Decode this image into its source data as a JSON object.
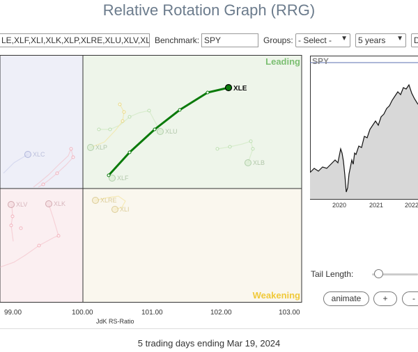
{
  "page": {
    "title": "Relative Rotation Graph (RRG)"
  },
  "toolbar": {
    "symbols_value": "LE,XLF,XLI,XLK,XLP,XLRE,XLU,XLV,XL",
    "benchmark_label": "Benchmark:",
    "benchmark_value": "SPY",
    "groups_label": "Groups:",
    "groups_value": "- Select -",
    "period_value": "5 years",
    "extra_value": "D"
  },
  "rrg": {
    "quadrants": {
      "leading": "Leading",
      "weakening": "Weakening"
    },
    "x_axis_label": "JdK RS-Ratio",
    "x_ticks": [
      "99.00",
      "100.00",
      "101.00",
      "102.00",
      "103.00"
    ],
    "colors": {
      "leading": "#eef5ea",
      "weakening": "#faf7ee",
      "lagging": "#fbeff1",
      "improving": "#eeeff8",
      "highlight": "#0a7a0a"
    },
    "selected": "XLE",
    "sectors": [
      {
        "name": "XLE",
        "highlight": true
      },
      {
        "name": "XLU"
      },
      {
        "name": "XLP"
      },
      {
        "name": "XLF"
      },
      {
        "name": "XLB"
      },
      {
        "name": "XLC"
      },
      {
        "name": "XLV"
      },
      {
        "name": "XLK"
      },
      {
        "name": "XLRE"
      },
      {
        "name": "XLI"
      }
    ]
  },
  "price_chart": {
    "symbol": "SPY",
    "x_ticks": [
      "2020",
      "2021",
      "2022"
    ]
  },
  "controls": {
    "tail_length_label": "Tail Length:",
    "animate_label": "animate",
    "plus_label": "+",
    "minus_label": "-"
  },
  "footer": {
    "text": "5 trading days ending Mar 19, 2024"
  }
}
